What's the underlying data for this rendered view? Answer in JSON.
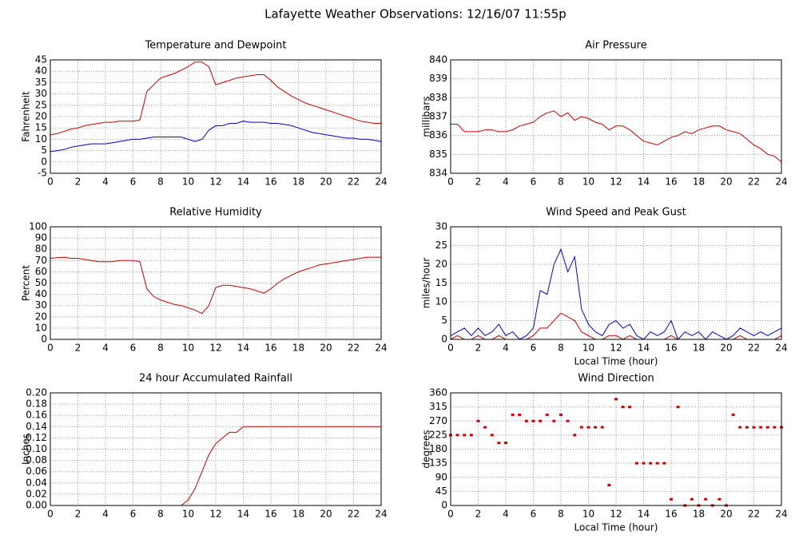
{
  "title": "Lafayette Weather Observations: 12/16/07 11:55p",
  "chart_data": [
    {
      "type": "line",
      "title": "Temperature and Dewpoint",
      "y_label": "Fahrenheit",
      "x": [
        0,
        0.5,
        1,
        1.5,
        2,
        2.5,
        3,
        3.5,
        4,
        4.5,
        5,
        5.5,
        6,
        6.5,
        7,
        7.5,
        8,
        8.5,
        9,
        9.5,
        10,
        10.5,
        11,
        11.5,
        12,
        12.5,
        13,
        13.5,
        14,
        14.5,
        15,
        15.5,
        16,
        16.5,
        17,
        17.5,
        18,
        18.5,
        19,
        19.5,
        20,
        20.5,
        21,
        21.5,
        22,
        22.5,
        23,
        23.5,
        24
      ],
      "series": [
        {
          "color": "#cc0000",
          "values": [
            12,
            12.5,
            13.5,
            14.5,
            15,
            16,
            16.5,
            17,
            17.5,
            17.5,
            18,
            18,
            18,
            18.5,
            31,
            34,
            37,
            38,
            39,
            40.5,
            42,
            44,
            44,
            42,
            34,
            35,
            36,
            37,
            37.5,
            38,
            38.5,
            38.5,
            36,
            33,
            31,
            29,
            27.5,
            26,
            25,
            24,
            23,
            22,
            21,
            20,
            19,
            18,
            17.5,
            17,
            17
          ]
        },
        {
          "color": "#0000cc",
          "values": [
            4.5,
            5,
            5.5,
            6.5,
            7,
            7.5,
            8,
            8,
            8,
            8.5,
            9,
            9.5,
            10,
            10,
            10.5,
            11,
            11,
            11,
            11,
            11,
            10,
            9,
            10,
            14,
            16,
            16,
            17,
            17,
            18,
            17.5,
            17.5,
            17.5,
            17,
            17,
            16.5,
            16,
            15,
            14,
            13,
            12.5,
            12,
            11.5,
            11,
            10.5,
            10.5,
            10,
            10,
            9.5,
            9
          ]
        }
      ],
      "xlim": [
        0,
        24
      ],
      "xticks": [
        0,
        2,
        4,
        6,
        8,
        10,
        12,
        14,
        16,
        18,
        20,
        22,
        24
      ],
      "ylim": [
        -5,
        45
      ],
      "yticks": [
        -5,
        0,
        5,
        10,
        15,
        20,
        25,
        30,
        35,
        40,
        45
      ],
      "grid": true
    },
    {
      "type": "line",
      "title": "Air Pressure",
      "y_label": "millibars",
      "x": [
        0,
        0.5,
        1,
        1.5,
        2,
        2.5,
        3,
        3.5,
        4,
        4.5,
        5,
        5.5,
        6,
        6.5,
        7,
        7.5,
        8,
        8.5,
        9,
        9.5,
        10,
        10.5,
        11,
        11.5,
        12,
        12.5,
        13,
        13.5,
        14,
        14.5,
        15,
        15.5,
        16,
        16.5,
        17,
        17.5,
        18,
        18.5,
        19,
        19.5,
        20,
        20.5,
        21,
        21.5,
        22,
        22.5,
        23,
        23.5,
        24
      ],
      "series": [
        {
          "color": "#cc0000",
          "values": [
            836.6,
            836.6,
            836.2,
            836.2,
            836.2,
            836.3,
            836.3,
            836.2,
            836.2,
            836.3,
            836.5,
            836.6,
            836.7,
            837,
            837.2,
            837.3,
            837,
            837.2,
            836.8,
            837,
            836.9,
            836.7,
            836.6,
            836.3,
            836.5,
            836.5,
            836.3,
            836,
            835.7,
            835.6,
            835.5,
            835.7,
            835.9,
            836,
            836.2,
            836.1,
            836.3,
            836.4,
            836.5,
            836.5,
            836.3,
            836.2,
            836.1,
            835.8,
            835.5,
            835.3,
            835,
            834.9,
            834.6
          ]
        }
      ],
      "xlim": [
        0,
        24
      ],
      "xticks": [
        0,
        2,
        4,
        6,
        8,
        10,
        12,
        14,
        16,
        18,
        20,
        22,
        24
      ],
      "ylim": [
        834,
        840
      ],
      "yticks": [
        834,
        835,
        836,
        837,
        838,
        839,
        840
      ],
      "grid": true
    },
    {
      "type": "line",
      "title": "Relative Humidity",
      "y_label": "Percent",
      "x": [
        0,
        0.5,
        1,
        1.5,
        2,
        2.5,
        3,
        3.5,
        4,
        4.5,
        5,
        5.5,
        6,
        6.5,
        7,
        7.5,
        8,
        8.5,
        9,
        9.5,
        10,
        10.5,
        11,
        11.5,
        12,
        12.5,
        13,
        13.5,
        14,
        14.5,
        15,
        15.5,
        16,
        16.5,
        17,
        17.5,
        18,
        18.5,
        19,
        19.5,
        20,
        20.5,
        21,
        21.5,
        22,
        22.5,
        23,
        23.5,
        24
      ],
      "series": [
        {
          "color": "#cc0000",
          "values": [
            72,
            72.5,
            73,
            72,
            72,
            71,
            70,
            69,
            69,
            69,
            70,
            70,
            70,
            69,
            45,
            38,
            35,
            33,
            31,
            30,
            28,
            26,
            23,
            30,
            46,
            48,
            48,
            47,
            46,
            45,
            43,
            41,
            45,
            50,
            54,
            57,
            60,
            62,
            64,
            66,
            67,
            68,
            69,
            70,
            71,
            72,
            73,
            73,
            73
          ]
        }
      ],
      "xlim": [
        0,
        24
      ],
      "xticks": [
        0,
        2,
        4,
        6,
        8,
        10,
        12,
        14,
        16,
        18,
        20,
        22,
        24
      ],
      "ylim": [
        0,
        100
      ],
      "yticks": [
        0,
        10,
        20,
        30,
        40,
        50,
        60,
        70,
        80,
        90,
        100
      ],
      "grid": true
    },
    {
      "type": "line",
      "title": "Wind Speed and Peak Gust",
      "y_label": "miles/hour",
      "x_label": "Local Time (hour)",
      "x": [
        0,
        0.5,
        1,
        1.5,
        2,
        2.5,
        3,
        3.5,
        4,
        4.5,
        5,
        5.5,
        6,
        6.5,
        7,
        7.5,
        8,
        8.5,
        9,
        9.5,
        10,
        10.5,
        11,
        11.5,
        12,
        12.5,
        13,
        13.5,
        14,
        14.5,
        15,
        15.5,
        16,
        16.5,
        17,
        17.5,
        18,
        18.5,
        19,
        19.5,
        20,
        20.5,
        21,
        21.5,
        22,
        22.5,
        23,
        23.5,
        24
      ],
      "series": [
        {
          "color": "#0000cc",
          "values": [
            1,
            2,
            3,
            1,
            3,
            1,
            2,
            4,
            1,
            2,
            0,
            1,
            3,
            13,
            12,
            20,
            24,
            18,
            22,
            8,
            4,
            2,
            1,
            4,
            5,
            3,
            4,
            1,
            0,
            2,
            1,
            2,
            5,
            0,
            2,
            1,
            2,
            0,
            2,
            1,
            0,
            1,
            3,
            2,
            1,
            2,
            1,
            2,
            3
          ]
        },
        {
          "color": "#cc0000",
          "values": [
            0,
            1,
            0,
            0,
            1,
            0,
            0,
            1,
            0,
            0,
            0,
            0,
            1,
            3,
            3,
            5,
            7,
            6,
            5,
            2,
            1,
            0,
            0,
            1,
            1,
            0,
            1,
            0,
            0,
            0,
            0,
            0,
            1,
            0,
            0,
            0,
            0,
            0,
            0,
            0,
            0,
            0,
            1,
            0,
            0,
            0,
            0,
            0,
            1
          ]
        }
      ],
      "xlim": [
        0,
        24
      ],
      "xticks": [
        0,
        2,
        4,
        6,
        8,
        10,
        12,
        14,
        16,
        18,
        20,
        22,
        24
      ],
      "ylim": [
        0,
        30
      ],
      "yticks": [
        0,
        5,
        10,
        15,
        20,
        25,
        30
      ],
      "grid": true
    },
    {
      "type": "line",
      "title": "24 hour Accumulated Rainfall",
      "y_label": "Inches",
      "x": [
        0,
        0.5,
        1,
        1.5,
        2,
        2.5,
        3,
        3.5,
        4,
        4.5,
        5,
        5.5,
        6,
        6.5,
        7,
        7.5,
        8,
        8.5,
        9,
        9.5,
        10,
        10.5,
        11,
        11.5,
        12,
        12.5,
        13,
        13.5,
        14,
        14.5,
        15,
        15.5,
        16,
        16.5,
        17,
        17.5,
        18,
        18.5,
        19,
        19.5,
        20,
        20.5,
        21,
        21.5,
        22,
        22.5,
        23,
        23.5,
        24
      ],
      "series": [
        {
          "color": "#cc0000",
          "values": [
            0,
            0,
            0,
            0,
            0,
            0,
            0,
            0,
            0,
            0,
            0,
            0,
            0,
            0,
            0,
            0,
            0,
            0,
            0,
            0,
            0.01,
            0.03,
            0.06,
            0.09,
            0.11,
            0.12,
            0.13,
            0.13,
            0.14,
            0.14,
            0.14,
            0.14,
            0.14,
            0.14,
            0.14,
            0.14,
            0.14,
            0.14,
            0.14,
            0.14,
            0.14,
            0.14,
            0.14,
            0.14,
            0.14,
            0.14,
            0.14,
            0.14,
            0.14
          ]
        }
      ],
      "xlim": [
        0,
        24
      ],
      "xticks": [
        0,
        2,
        4,
        6,
        8,
        10,
        12,
        14,
        16,
        18,
        20,
        22,
        24
      ],
      "ylim": [
        0,
        0.2
      ],
      "yticks": [
        {
          "value": 0,
          "label": "0.00"
        },
        {
          "value": 0.02,
          "label": "0.02"
        },
        {
          "value": 0.04,
          "label": "0.04"
        },
        {
          "value": 0.06,
          "label": "0.06"
        },
        {
          "value": 0.08,
          "label": "0.08"
        },
        {
          "value": 0.1,
          "label": "0.10"
        },
        {
          "value": 0.12,
          "label": "0.12"
        },
        {
          "value": 0.14,
          "label": "0.14"
        },
        {
          "value": 0.16,
          "label": "0.16"
        },
        {
          "value": 0.18,
          "label": "0.18"
        },
        {
          "value": 0.2,
          "label": "0.20"
        }
      ],
      "grid": true
    },
    {
      "type": "scatter",
      "title": "Wind Direction",
      "y_label": "degrees",
      "x_label": "Local Time (hour)",
      "x": [
        0,
        0.5,
        1,
        1.5,
        2,
        2.5,
        3,
        3.5,
        4,
        4.5,
        5,
        5.5,
        6,
        6.5,
        7,
        7.5,
        8,
        8.5,
        9,
        9.5,
        10,
        10.5,
        11,
        11.5,
        12,
        12.5,
        13,
        13.5,
        14,
        14.5,
        15,
        15.5,
        16,
        16.5,
        17,
        17.5,
        18,
        18.5,
        19,
        19.5,
        20,
        20.5,
        21,
        21.5,
        22,
        22.5,
        23,
        23.5,
        24
      ],
      "series": [
        {
          "color": "#cc0000",
          "values": [
            225,
            225,
            225,
            225,
            270,
            250,
            225,
            200,
            200,
            290,
            290,
            270,
            270,
            270,
            290,
            270,
            290,
            270,
            225,
            250,
            250,
            250,
            250,
            65,
            340,
            315,
            315,
            135,
            135,
            135,
            135,
            135,
            20,
            315,
            0,
            20,
            0,
            20,
            0,
            20,
            0,
            290,
            250,
            250,
            250,
            250,
            250,
            250,
            250
          ]
        }
      ],
      "xlim": [
        0,
        24
      ],
      "xticks": [
        0,
        2,
        4,
        6,
        8,
        10,
        12,
        14,
        16,
        18,
        20,
        22,
        24
      ],
      "ylim": [
        0,
        360
      ],
      "yticks": [
        0,
        45,
        90,
        135,
        180,
        225,
        270,
        315,
        360
      ],
      "grid": true
    }
  ]
}
